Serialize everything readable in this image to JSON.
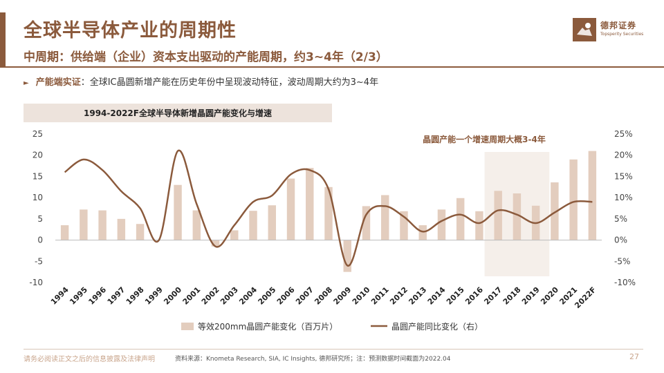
{
  "header": {
    "title": "全球半导体产业的周期性",
    "subtitle": "中周期：供给端（企业）资本支出驱动的产能周期，约3~4年（2/3）",
    "logo_cn": "德邦证券",
    "logo_en": "Topsperity Securities"
  },
  "bullet": {
    "key": "产能端实证",
    "text": "：全球IC晶圆新增产能在历史年份中呈现波动特征，波动周期大约为3~4年"
  },
  "chart_data": {
    "type": "bar",
    "title": "1994-2022F全球半导体新增晶圆产能变化与增速",
    "categories": [
      "1994",
      "1995",
      "1996",
      "1997",
      "1998",
      "1999",
      "2000",
      "2001",
      "2002",
      "2003",
      "2004",
      "2005",
      "2006",
      "2007",
      "2008",
      "2009",
      "2010",
      "2011",
      "2012",
      "2013",
      "2014",
      "2015",
      "2016",
      "2017",
      "2018",
      "2019",
      "2020",
      "2021",
      "2022F"
    ],
    "series": [
      {
        "name": "等效200mm晶圆产能变化（百万片）",
        "kind": "bar",
        "axis": "left",
        "values": [
          3.5,
          7.2,
          7.0,
          5.0,
          3.8,
          0.0,
          13.0,
          7.0,
          -1.5,
          2.3,
          6.9,
          8.2,
          14.5,
          17.0,
          12.5,
          -7.5,
          8.0,
          10.6,
          6.8,
          3.5,
          7.2,
          9.9,
          6.8,
          11.6,
          11.0,
          8.1,
          13.6,
          19.0,
          21.0
        ]
      },
      {
        "name": "晶圆产能同比变化（右）",
        "kind": "line",
        "axis": "right",
        "values": [
          16.0,
          19.0,
          16.5,
          11.5,
          7.5,
          0.0,
          21.0,
          8.5,
          -1.5,
          3.5,
          9.0,
          10.5,
          15.5,
          16.5,
          12.0,
          -6.0,
          6.0,
          8.0,
          5.5,
          2.0,
          4.5,
          6.0,
          4.0,
          7.0,
          6.0,
          4.0,
          6.5,
          9.0,
          9.0
        ]
      }
    ],
    "ylim_left": [
      -10,
      25
    ],
    "yticks_left": [
      "25",
      "20",
      "15",
      "10",
      "5",
      "0",
      "-5",
      "-10"
    ],
    "ylim_right": [
      -10,
      25
    ],
    "yticks_right": [
      "25%",
      "20%",
      "15%",
      "10%",
      "5%",
      "0%",
      "-5%",
      "-10%"
    ],
    "annotation": "晶圆产能一个增速周期大概3-4年",
    "highlight_range": [
      "2017",
      "2019"
    ],
    "legend_position": "bottom",
    "grid": false,
    "colors": {
      "bar": "#E3CDBE",
      "line": "#8B5A3C",
      "highlight": "#F5EFEA",
      "axis": "#999999"
    }
  },
  "footer": {
    "disclaimer": "请务必阅读正文之后的信息披露及法律声明",
    "source": "资料来源：Knometa Research, SIA, IC Insights, 德邦研究所；注：预测数据时间截面为2022.04",
    "page": "27"
  }
}
